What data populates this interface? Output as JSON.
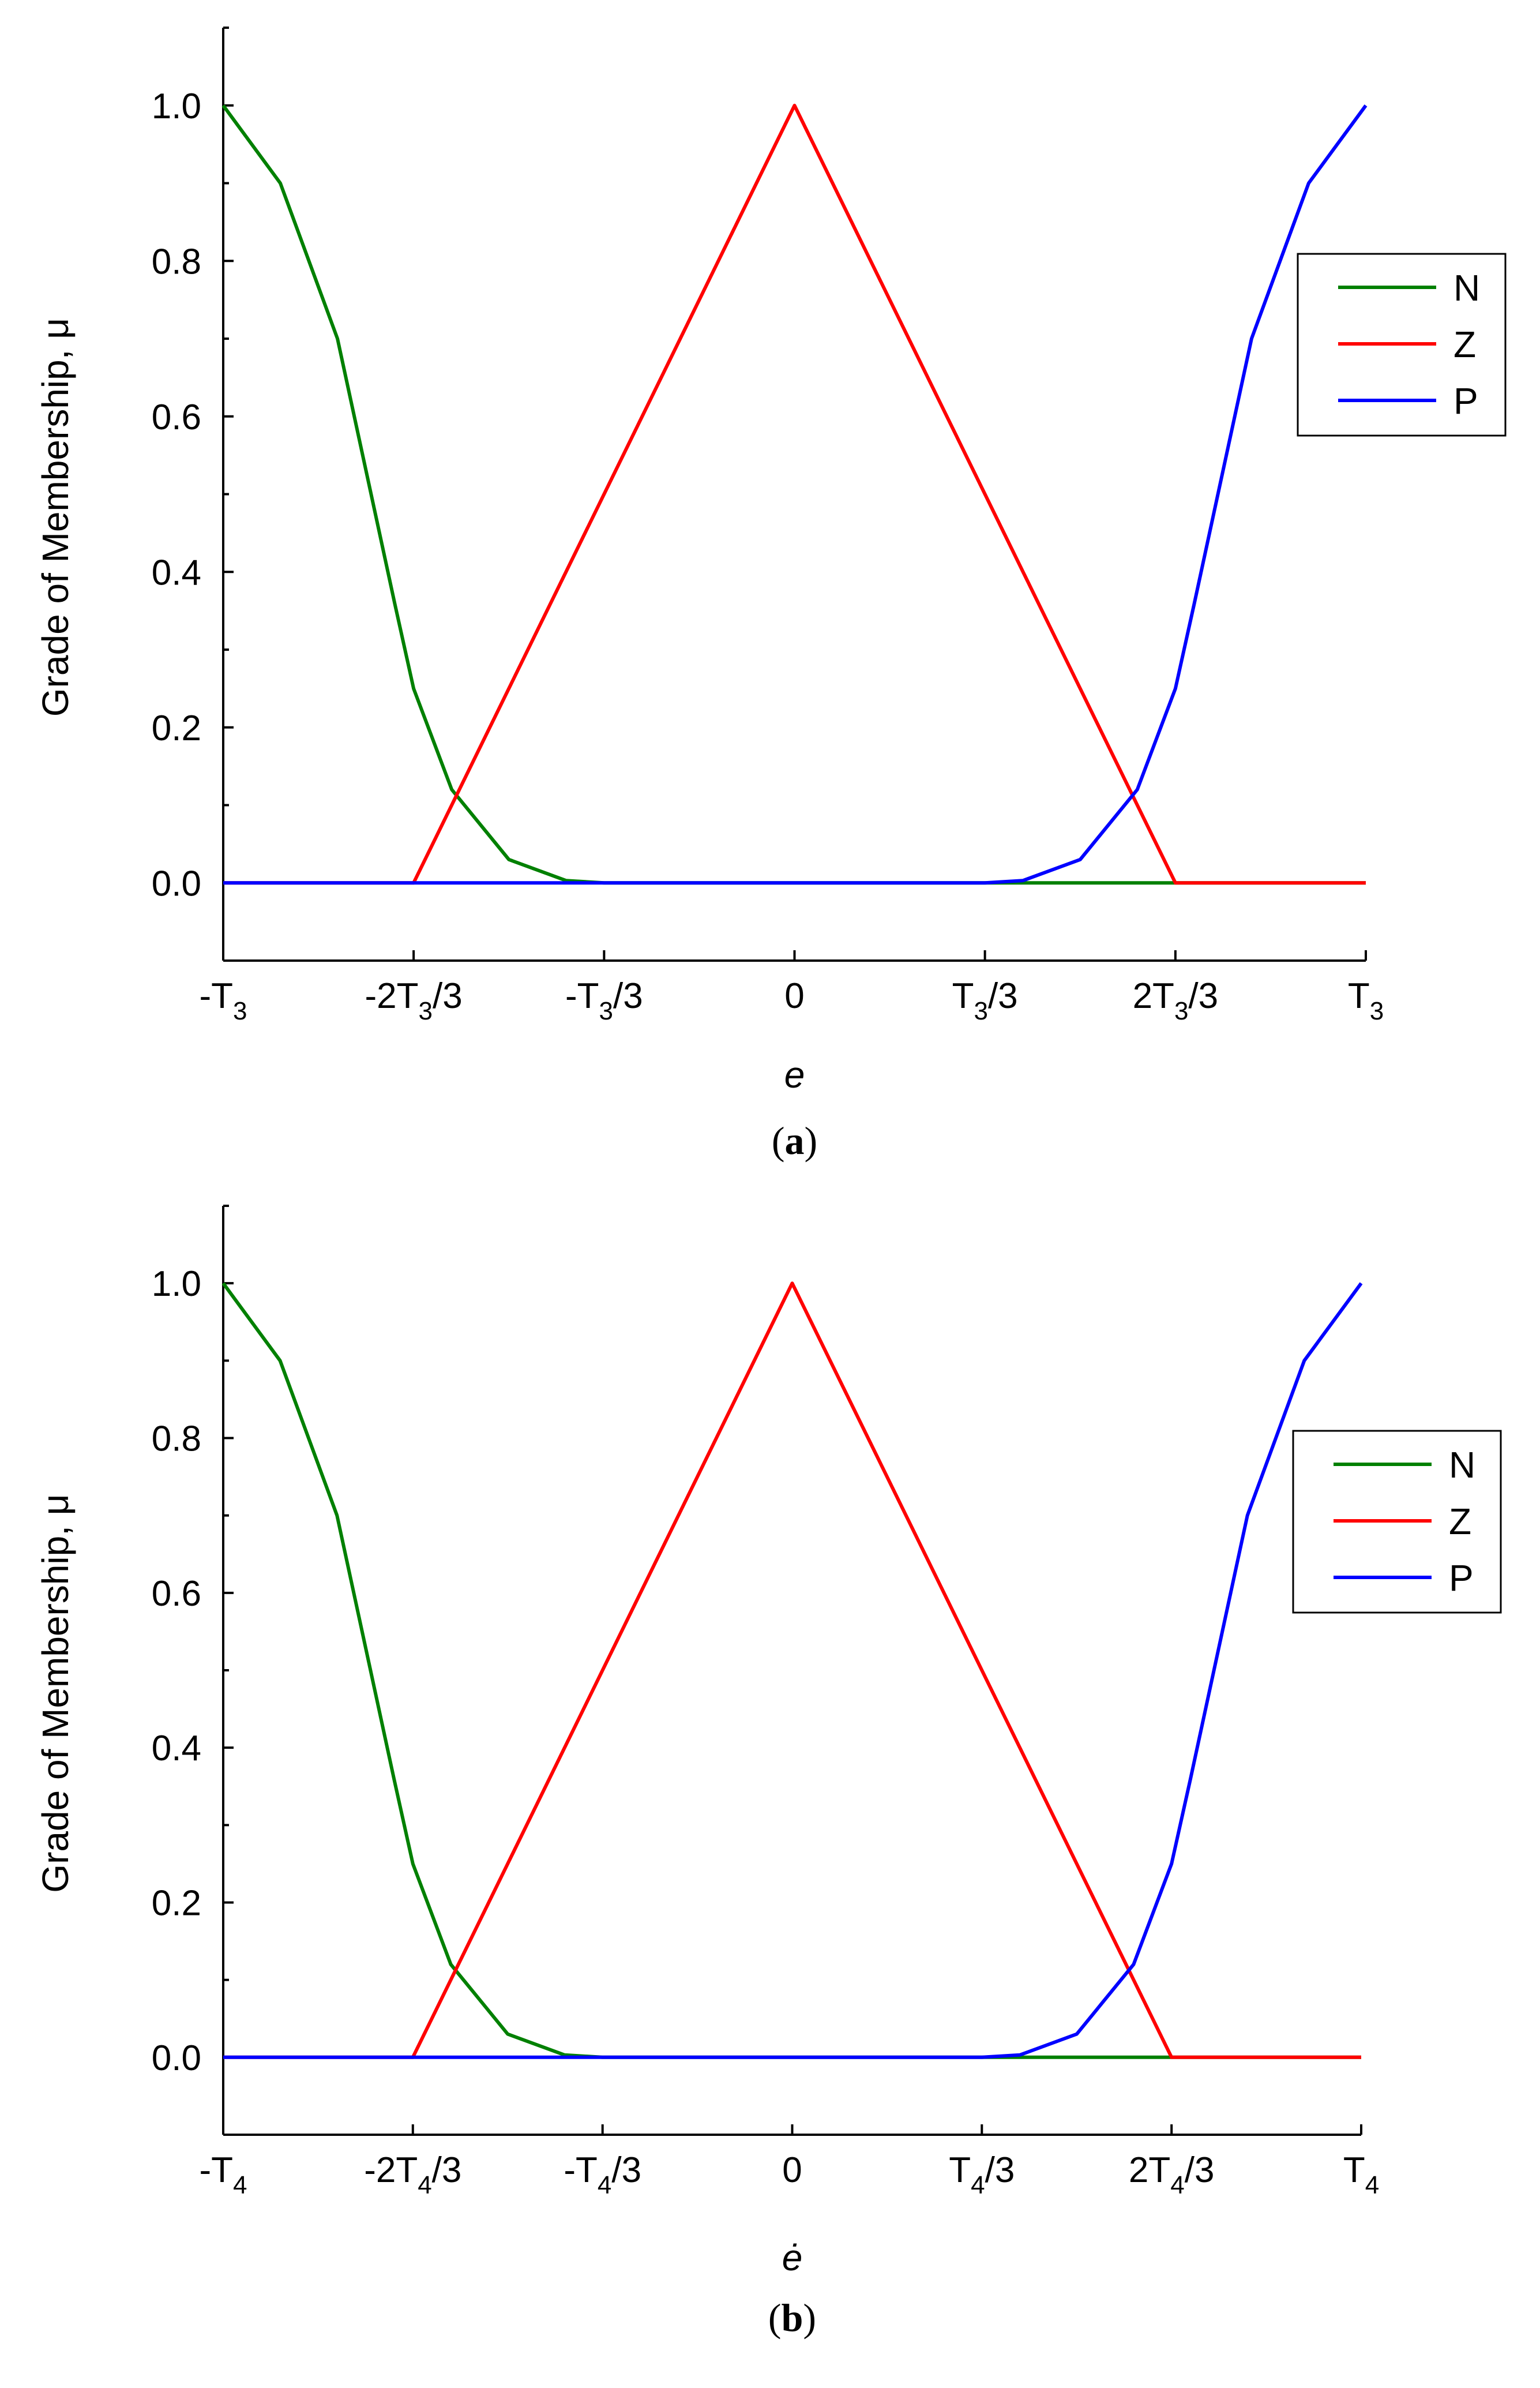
{
  "chart_data": [
    {
      "type": "line",
      "caption_open": "(",
      "caption_letter": "a",
      "caption_close": ")",
      "xlabel": "e",
      "ylabel": "Grade of Membership, μ",
      "xlim": [
        -1,
        1
      ],
      "ylim": [
        -0.1,
        1.1
      ],
      "yticks": [
        {
          "value": 0.0,
          "label": "0.0"
        },
        {
          "value": 0.2,
          "label": "0.2"
        },
        {
          "value": 0.4,
          "label": "0.4"
        },
        {
          "value": 0.6,
          "label": "0.6"
        },
        {
          "value": 0.8,
          "label": "0.8"
        },
        {
          "value": 1.0,
          "label": "1.0"
        }
      ],
      "xticks": [
        {
          "value": -1,
          "pre": "-T",
          "sub": "3",
          "post": ""
        },
        {
          "value": -0.6667,
          "pre": "-2T",
          "sub": "3",
          "post": "/3"
        },
        {
          "value": -0.3333,
          "pre": "-T",
          "sub": "3",
          "post": "/3"
        },
        {
          "value": 0,
          "pre": "0",
          "sub": "",
          "post": ""
        },
        {
          "value": 0.3333,
          "pre": "T",
          "sub": "3",
          "post": "/3"
        },
        {
          "value": 0.6667,
          "pre": "2T",
          "sub": "3",
          "post": "/3"
        },
        {
          "value": 1,
          "pre": "T",
          "sub": "3",
          "post": ""
        }
      ],
      "series": [
        {
          "name": "N",
          "color": "#008000",
          "x": [
            -1,
            -0.9,
            -0.8,
            -0.7,
            -0.6667,
            -0.6,
            -0.5,
            -0.4,
            -0.3333,
            0,
            0.3333,
            0.6667,
            1
          ],
          "y": [
            1.0,
            0.9,
            0.7,
            0.36,
            0.25,
            0.12,
            0.03,
            0.003,
            0.0,
            0.0,
            0.0,
            0.0,
            0.0
          ]
        },
        {
          "name": "Z",
          "color": "#ff0000",
          "x": [
            -1,
            -0.6667,
            0,
            0.6667,
            1
          ],
          "y": [
            0.0,
            0.0,
            1.0,
            0.0,
            0.0
          ]
        },
        {
          "name": "P",
          "color": "#0000ff",
          "x": [
            -1,
            -0.3333,
            0,
            0.3333,
            0.4,
            0.5,
            0.6,
            0.6667,
            0.7,
            0.8,
            0.9,
            1
          ],
          "y": [
            0.0,
            0.0,
            0.0,
            0.0,
            0.003,
            0.03,
            0.12,
            0.25,
            0.36,
            0.7,
            0.9,
            1.0
          ]
        }
      ],
      "legend": [
        "N",
        "Z",
        "P"
      ]
    },
    {
      "type": "line",
      "caption_open": "(",
      "caption_letter": "b",
      "caption_close": ")",
      "xlabel": "ė",
      "ylabel": "Grade of Membership, μ",
      "xlim": [
        -1,
        1
      ],
      "ylim": [
        -0.1,
        1.1
      ],
      "yticks": [
        {
          "value": 0.0,
          "label": "0.0"
        },
        {
          "value": 0.2,
          "label": "0.2"
        },
        {
          "value": 0.4,
          "label": "0.4"
        },
        {
          "value": 0.6,
          "label": "0.6"
        },
        {
          "value": 0.8,
          "label": "0.8"
        },
        {
          "value": 1.0,
          "label": "1.0"
        }
      ],
      "xticks": [
        {
          "value": -1,
          "pre": "-T",
          "sub": "4",
          "post": ""
        },
        {
          "value": -0.6667,
          "pre": "-2T",
          "sub": "4",
          "post": "/3"
        },
        {
          "value": -0.3333,
          "pre": "-T",
          "sub": "4",
          "post": "/3"
        },
        {
          "value": 0,
          "pre": "0",
          "sub": "",
          "post": ""
        },
        {
          "value": 0.3333,
          "pre": "T",
          "sub": "4",
          "post": "/3"
        },
        {
          "value": 0.6667,
          "pre": "2T",
          "sub": "4",
          "post": "/3"
        },
        {
          "value": 1,
          "pre": "T",
          "sub": "4",
          "post": ""
        }
      ],
      "series": [
        {
          "name": "N",
          "color": "#008000",
          "x": [
            -1,
            -0.9,
            -0.8,
            -0.7,
            -0.6667,
            -0.6,
            -0.5,
            -0.4,
            -0.3333,
            0,
            0.3333,
            0.6667,
            1
          ],
          "y": [
            1.0,
            0.9,
            0.7,
            0.36,
            0.25,
            0.12,
            0.03,
            0.003,
            0.0,
            0.0,
            0.0,
            0.0,
            0.0
          ]
        },
        {
          "name": "Z",
          "color": "#ff0000",
          "x": [
            -1,
            -0.6667,
            0,
            0.6667,
            1
          ],
          "y": [
            0.0,
            0.0,
            1.0,
            0.0,
            0.0
          ]
        },
        {
          "name": "P",
          "color": "#0000ff",
          "x": [
            -1,
            -0.3333,
            0,
            0.3333,
            0.4,
            0.5,
            0.6,
            0.6667,
            0.7,
            0.8,
            0.9,
            1
          ],
          "y": [
            0.0,
            0.0,
            0.0,
            0.0,
            0.003,
            0.03,
            0.12,
            0.25,
            0.36,
            0.7,
            0.9,
            1.0
          ]
        }
      ],
      "legend": [
        "N",
        "Z",
        "P"
      ]
    }
  ]
}
